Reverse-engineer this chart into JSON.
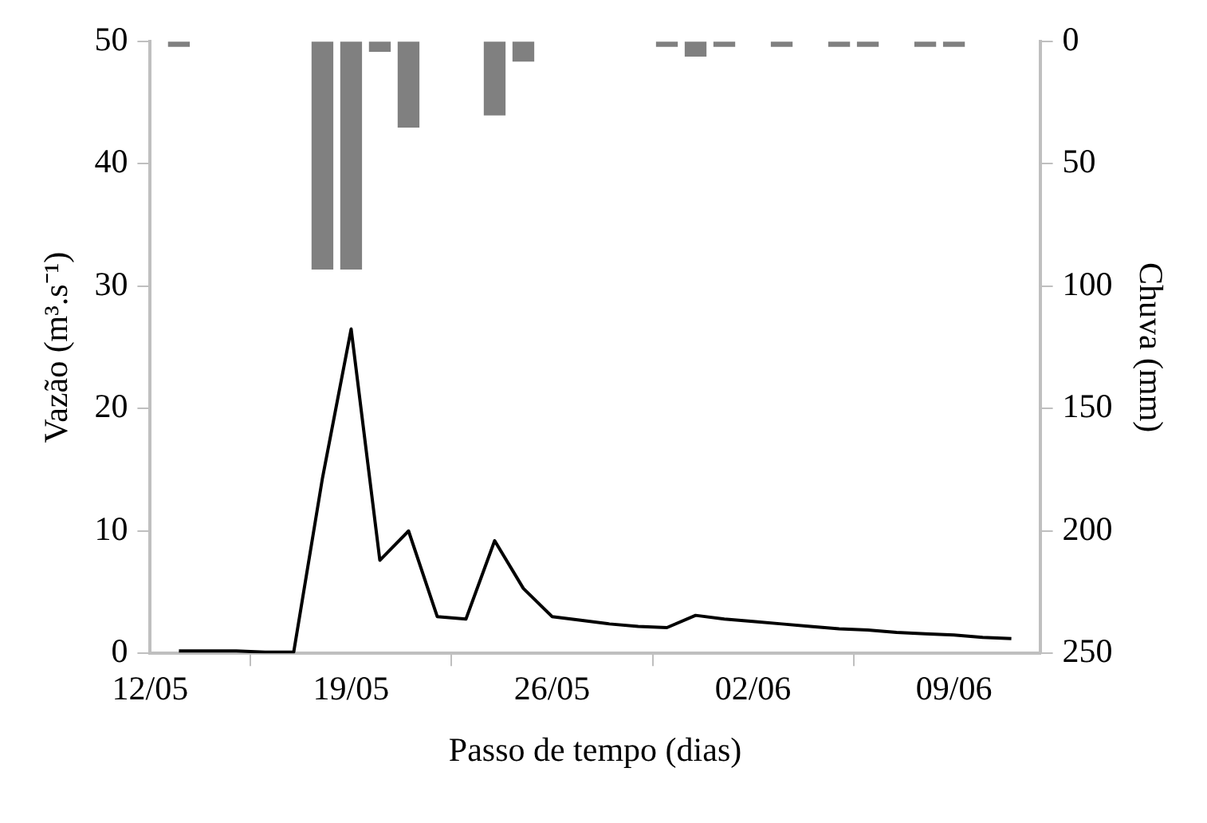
{
  "chart_data": {
    "type": "line",
    "xlabel": "Passo de tempo (dias)",
    "ylabel": "Vazão (m³.s⁻¹)",
    "y2label": "Chuva (mm)",
    "xlim": [
      "--05-12",
      "--06-12"
    ],
    "xticks": [
      {
        "value": "--05-12",
        "label": "12/05"
      },
      {
        "value": "--05-19",
        "label": "19/05"
      },
      {
        "value": "--05-26",
        "label": "26/05"
      },
      {
        "value": "--06-02",
        "label": "02/06"
      },
      {
        "value": "--06-09",
        "label": "09/06"
      }
    ],
    "ylim": [
      0,
      50
    ],
    "yticks": [
      0,
      10,
      20,
      30,
      40,
      50
    ],
    "y2lim": [
      250,
      0
    ],
    "y2ticks": [
      0,
      50,
      100,
      150,
      200,
      250
    ],
    "grid": false,
    "legend": false,
    "marker": "none",
    "series": [
      {
        "type": "bar",
        "axis": "y2",
        "color": "#808080",
        "x": [
          "--05-13",
          "--05-18",
          "--05-19",
          "--05-20",
          "--05-21",
          "--05-24",
          "--05-25",
          "--05-30",
          "--05-31",
          "--06-01",
          "--06-03",
          "--06-05",
          "--06-06",
          "--06-08",
          "--06-09"
        ],
        "values": [
          2,
          93,
          93,
          4,
          35,
          30,
          8,
          2,
          6,
          2,
          2,
          2,
          2,
          2,
          2
        ]
      },
      {
        "color": "#000000",
        "x": [
          "--05-13",
          "--05-14",
          "--05-15",
          "--05-16",
          "--05-17",
          "--05-18",
          "--05-19",
          "--05-20",
          "--05-21",
          "--05-22",
          "--05-23",
          "--05-24",
          "--05-25",
          "--05-26",
          "--05-27",
          "--05-28",
          "--05-29",
          "--05-30",
          "--05-31",
          "--06-01",
          "--06-02",
          "--06-03",
          "--06-04",
          "--06-05",
          "--06-06",
          "--06-07",
          "--06-08",
          "--06-09",
          "--06-10",
          "--06-11"
        ],
        "values": [
          0.2,
          0.2,
          0.2,
          0.1,
          0.1,
          14.3,
          26.5,
          7.6,
          10,
          3,
          2.8,
          9.2,
          5.3,
          3,
          2.7,
          2.4,
          2.2,
          2.1,
          3.1,
          2.8,
          2.6,
          2.4,
          2.2,
          2,
          1.9,
          1.7,
          1.6,
          1.5,
          1.3,
          1.2
        ]
      }
    ]
  }
}
